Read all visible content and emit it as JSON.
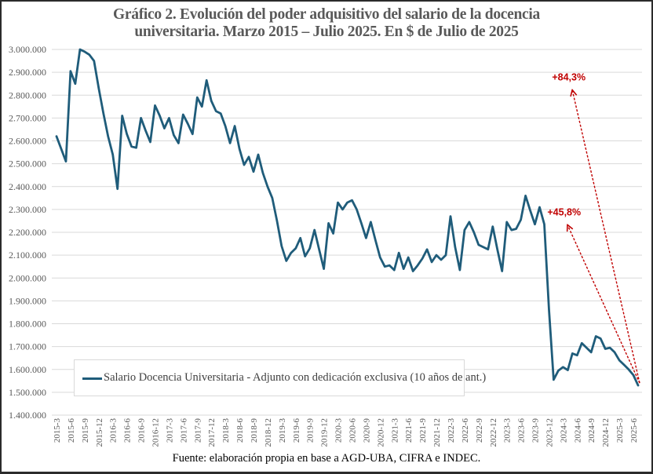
{
  "chart_data": {
    "type": "line",
    "title": "Gráfico 2. Evolución del poder adquisitivo del salario de la docencia universitaria. Marzo 2015 – Julio 2025. En $ de Julio de 2025",
    "title_lines": [
      "Gráfico 2. Evolución del poder adquisitivo del salario de la docencia",
      "universitaria. Marzo 2015 – Julio 2025. En $ de Julio de 2025"
    ],
    "xlabel": "",
    "ylabel": "",
    "ylim": [
      1400000,
      3000000
    ],
    "y_ticks": [
      1400000,
      1500000,
      1600000,
      1700000,
      1800000,
      1900000,
      2000000,
      2100000,
      2200000,
      2300000,
      2400000,
      2500000,
      2600000,
      2700000,
      2800000,
      2900000,
      3000000
    ],
    "y_tick_labels": [
      "1.400.000",
      "1.500.000",
      "1.600.000",
      "1.700.000",
      "1.800.000",
      "1.900.000",
      "2.000.000",
      "2.100.000",
      "2.200.000",
      "2.300.000",
      "2.400.000",
      "2.500.000",
      "2.600.000",
      "2.700.000",
      "2.800.000",
      "2.900.000",
      "3.000.000"
    ],
    "grid": true,
    "x_start": "2015-3",
    "x_end": "2025-7",
    "x_frequency": "monthly",
    "x_tick_every_months": 3,
    "x_tick_labels": [
      "2015-3",
      "2015-6",
      "2015-9",
      "2015-12",
      "2016-3",
      "2016-6",
      "2016-9",
      "2016-12",
      "2017-3",
      "2017-6",
      "2017-9",
      "2017-12",
      "2018-3",
      "2018-6",
      "2018-9",
      "2018-12",
      "2019-3",
      "2019-6",
      "2019-9",
      "2019-12",
      "2020-3",
      "2020-6",
      "2020-9",
      "2020-12",
      "2021-3",
      "2021-6",
      "2021-9",
      "2021-12",
      "2022-3",
      "2022-6",
      "2022-9",
      "2022-12",
      "2023-3",
      "2023-6",
      "2023-9",
      "2023-12",
      "2024-3",
      "2024-6",
      "2024-9",
      "2024-12",
      "2025-3",
      "2025-6"
    ],
    "series": [
      {
        "name": "Salario Docencia Universitaria - Adjunto con dedicación exclusiva (10 años de ant.)",
        "color": "#1f5c7a",
        "values": [
          2620000,
          2565000,
          2510000,
          2905000,
          2850000,
          3000000,
          2990000,
          2977000,
          2950000,
          2830000,
          2720000,
          2620000,
          2540000,
          2390000,
          2710000,
          2630000,
          2575000,
          2570000,
          2700000,
          2645000,
          2595000,
          2755000,
          2710000,
          2655000,
          2700000,
          2625000,
          2590000,
          2715000,
          2675000,
          2630000,
          2790000,
          2750000,
          2865000,
          2775000,
          2730000,
          2720000,
          2665000,
          2590000,
          2665000,
          2565000,
          2495000,
          2530000,
          2465000,
          2540000,
          2460000,
          2400000,
          2350000,
          2250000,
          2140000,
          2075000,
          2110000,
          2130000,
          2175000,
          2095000,
          2130000,
          2210000,
          2125000,
          2040000,
          2240000,
          2195000,
          2330000,
          2300000,
          2330000,
          2340000,
          2300000,
          2240000,
          2175000,
          2245000,
          2165000,
          2090000,
          2050000,
          2055000,
          2035000,
          2110000,
          2040000,
          2090000,
          2030000,
          2055000,
          2085000,
          2125000,
          2070000,
          2100000,
          2080000,
          2100000,
          2270000,
          2135000,
          2035000,
          2210000,
          2245000,
          2200000,
          2145000,
          2135000,
          2125000,
          2225000,
          2125000,
          2030000,
          2245000,
          2210000,
          2215000,
          2255000,
          2360000,
          2295000,
          2235000,
          2310000,
          2235000,
          1860000,
          1555000,
          1595000,
          1610000,
          1597000,
          1670000,
          1662000,
          1715000,
          1695000,
          1675000,
          1745000,
          1735000,
          1690000,
          1695000,
          1675000,
          1640000,
          1620000,
          1600000,
          1575000,
          1530000
        ]
      }
    ],
    "legend": {
      "placement": "bottom-left",
      "entries": [
        "Salario Docencia Universitaria - Adjunto con dedicación exclusiva (10 años de ant.)"
      ]
    },
    "annotations": [
      {
        "text": "+84,3%",
        "type": "dashed-arrow",
        "color": "#c00000",
        "from": {
          "x": "2025-7",
          "y": 1530000
        },
        "to": {
          "x": "2024-5",
          "y": 2820000
        }
      },
      {
        "text": "+45,8%",
        "type": "dashed-arrow",
        "color": "#c00000",
        "from": {
          "x": "2025-7",
          "y": 1530000
        },
        "to": {
          "x": "2024-4",
          "y": 2230000
        }
      }
    ],
    "source": "Fuente:  elaboración propia en base a AGD-UBA,  CIFRA  e INDEC."
  }
}
